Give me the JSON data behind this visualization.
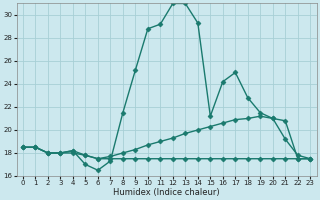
{
  "xlabel": "Humidex (Indice chaleur)",
  "bg_color": "#cce8ee",
  "grid_color": "#a8cfd6",
  "line_color": "#1a7a6e",
  "xlim": [
    -0.5,
    23.5
  ],
  "ylim": [
    16,
    31
  ],
  "xticks": [
    0,
    1,
    2,
    3,
    4,
    5,
    6,
    7,
    8,
    9,
    10,
    11,
    12,
    13,
    14,
    15,
    16,
    17,
    18,
    19,
    20,
    21,
    22,
    23
  ],
  "yticks": [
    16,
    18,
    20,
    22,
    24,
    26,
    28,
    30
  ],
  "series": [
    {
      "x": [
        0,
        1,
        2,
        3,
        4,
        5,
        6,
        7,
        8,
        9,
        10,
        11,
        12,
        13,
        14,
        15,
        16,
        17,
        18,
        19,
        20,
        21,
        22,
        23
      ],
      "y": [
        18.5,
        18.5,
        18.0,
        18.0,
        18.2,
        17.8,
        17.5,
        17.5,
        17.5,
        17.5,
        17.5,
        17.5,
        17.5,
        17.5,
        17.5,
        17.5,
        17.5,
        17.5,
        17.5,
        17.5,
        17.5,
        17.5,
        17.5,
        17.5
      ]
    },
    {
      "x": [
        0,
        1,
        2,
        3,
        4,
        5,
        6,
        7,
        8,
        9,
        10,
        11,
        12,
        13,
        14,
        15,
        16,
        17,
        18,
        19,
        20,
        21,
        22,
        23
      ],
      "y": [
        18.5,
        18.5,
        18.0,
        18.0,
        18.0,
        17.8,
        17.5,
        17.7,
        18.0,
        18.3,
        18.7,
        19.0,
        19.3,
        19.7,
        20.0,
        20.3,
        20.6,
        20.9,
        21.0,
        21.2,
        21.0,
        19.2,
        17.8,
        17.5
      ]
    },
    {
      "x": [
        0,
        1,
        2,
        3,
        4,
        5,
        6,
        7,
        8,
        9,
        10,
        11,
        12,
        13,
        14,
        15,
        16,
        17,
        18,
        19,
        20,
        21,
        22,
        23
      ],
      "y": [
        18.5,
        18.5,
        18.0,
        18.0,
        18.2,
        17.0,
        16.5,
        17.3,
        21.5,
        25.2,
        28.8,
        29.2,
        31.0,
        31.0,
        29.3,
        21.2,
        24.2,
        25.0,
        22.8,
        21.5,
        21.0,
        20.8,
        17.5,
        17.5
      ]
    }
  ]
}
